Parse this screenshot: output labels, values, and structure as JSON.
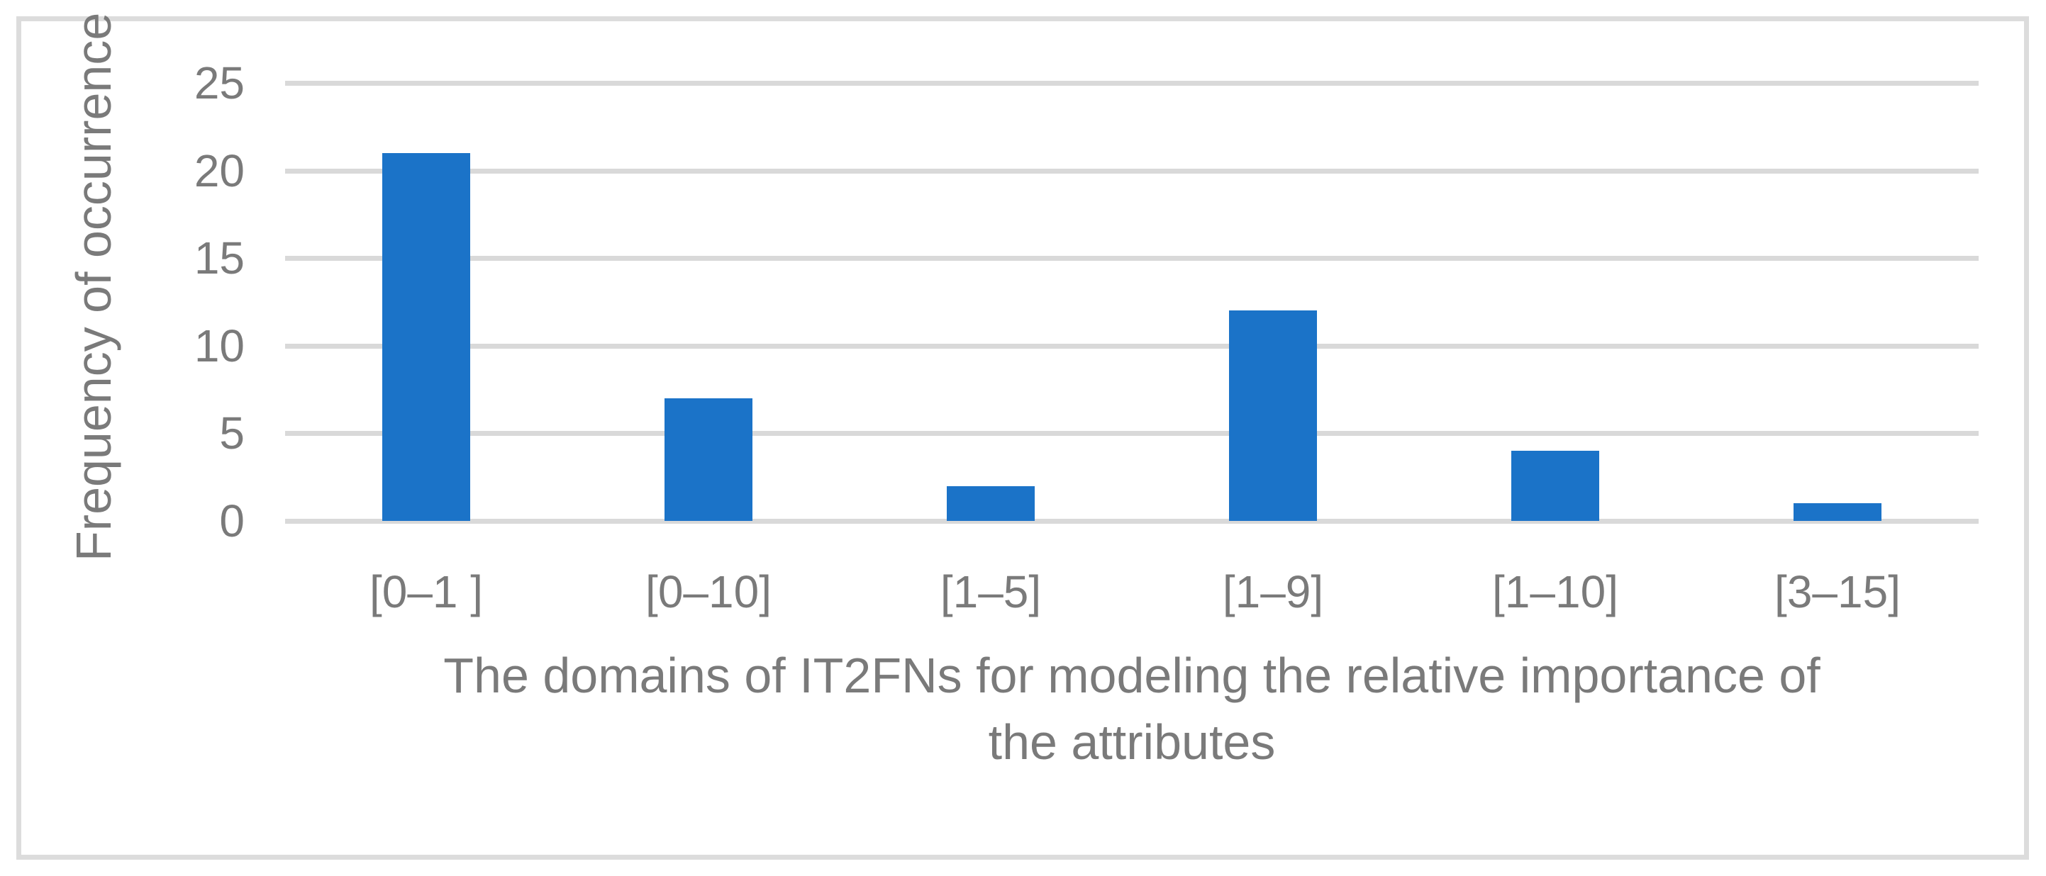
{
  "chart_data": {
    "type": "bar",
    "title": "",
    "categories": [
      "[0–1 ]",
      "[0–10]",
      "[1–5]",
      "[1–9]",
      "[1–10]",
      "[3–15]"
    ],
    "values": [
      21,
      7,
      2,
      12,
      4,
      1
    ],
    "series_name": "Frequency of occurrence",
    "xlabel": "The domains of IT2FNs for modeling the relative importance of the attributes",
    "xlabel_lines": [
      "The domains of IT2FNs for modeling the relative importance of",
      "the attributes"
    ],
    "ylabel": "Frequency of occurrence",
    "ylim": [
      0,
      25
    ],
    "ytick_step": 5,
    "yticks": [
      25,
      20,
      15,
      10,
      5,
      0
    ],
    "grid": true,
    "legend": false
  },
  "colors": {
    "bar": "#1B73C8",
    "gridline": "#D9D9D9",
    "frame_border": "#DCDCDC",
    "text": "#7A7A7A",
    "background": "#FFFFFF"
  }
}
